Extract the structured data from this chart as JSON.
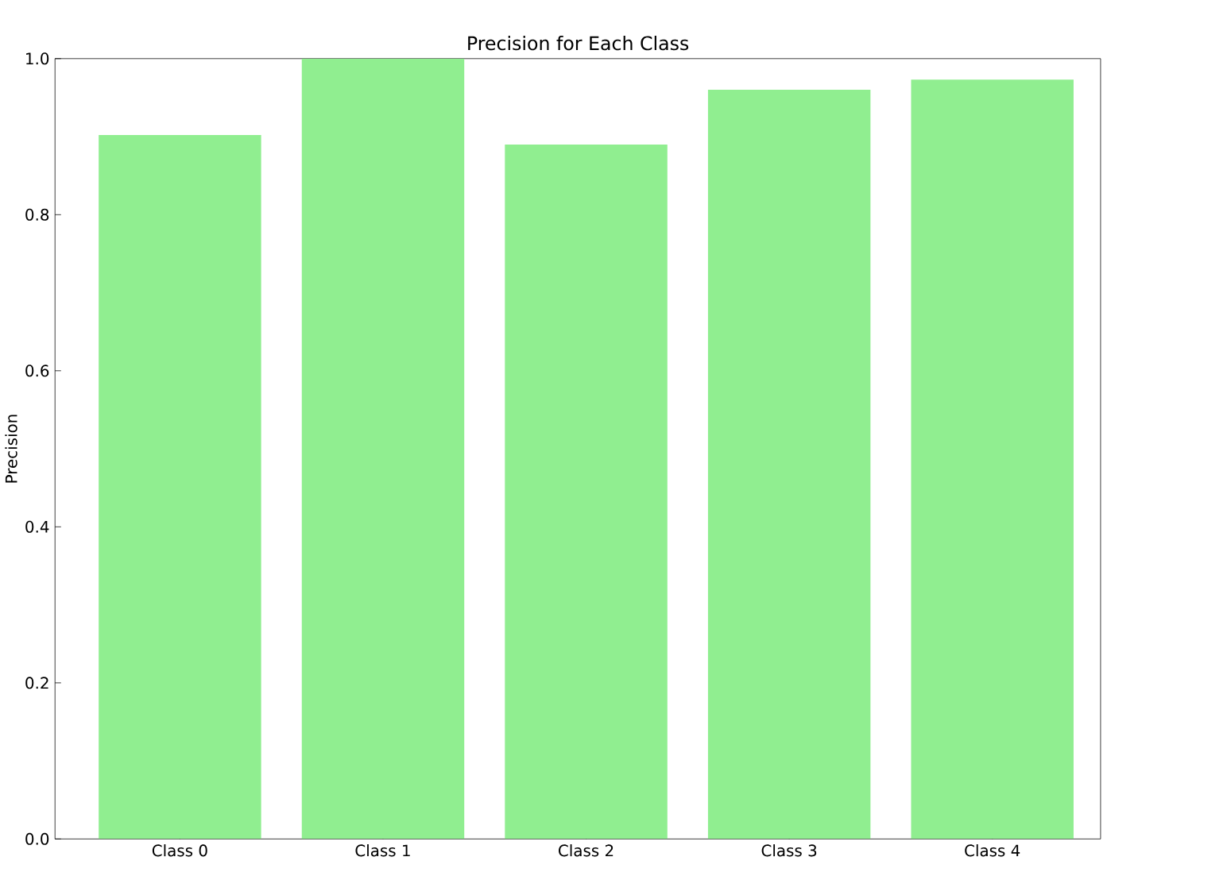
{
  "chart_data": {
    "type": "bar",
    "title": "Precision for Each Class",
    "ylabel": "Precision",
    "categories": [
      "Class 0",
      "Class 1",
      "Class 2",
      "Class 3",
      "Class 4"
    ],
    "values": [
      0.902,
      1.0,
      0.89,
      0.96,
      0.973
    ],
    "color": "#90ee90",
    "ylim": [
      0,
      1
    ],
    "yticks": [
      {
        "value": 0,
        "label": "0.0"
      },
      0.2,
      0.4,
      0.6,
      0.8,
      {
        "value": 1,
        "label": "1.0"
      }
    ],
    "grid": false
  }
}
